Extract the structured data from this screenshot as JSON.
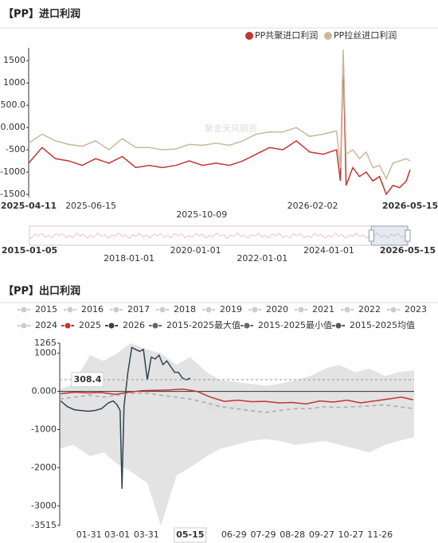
{
  "chart_data": [
    {
      "type": "line",
      "title": "【PP】进口利润",
      "watermark": "紫金天风期货",
      "xlim": [
        "2025-04-11",
        "2026-05-15"
      ],
      "xticks": [
        "2025-04-11",
        "2025-06-15",
        "2025-10-09",
        "2026-02-02",
        "2026-05-15"
      ],
      "ylim": [
        -1570,
        1790
      ],
      "yticks": [
        1500,
        1000,
        {
          "value": 500,
          "label": "500.0"
        },
        {
          "value": 0,
          "label": "0.000"
        },
        -500,
        -1000,
        -1500
      ],
      "x": [
        "2025-04-11",
        "2025-04-25",
        "2025-05-09",
        "2025-05-23",
        "2025-06-06",
        "2025-06-20",
        "2025-07-04",
        "2025-07-18",
        "2025-08-01",
        "2025-08-15",
        "2025-08-29",
        "2025-09-12",
        "2025-09-26",
        "2025-10-10",
        "2025-10-24",
        "2025-11-07",
        "2025-11-21",
        "2025-12-05",
        "2025-12-19",
        "2026-01-02",
        "2026-01-16",
        "2026-01-30",
        "2026-02-13",
        "2026-02-27",
        "2026-03-03",
        "2026-03-06",
        "2026-03-09",
        "2026-03-16",
        "2026-03-23",
        "2026-03-30",
        "2026-04-06",
        "2026-04-13",
        "2026-04-20",
        "2026-04-27",
        "2026-05-04",
        "2026-05-11",
        "2026-05-15"
      ],
      "series": [
        {
          "name": "PP共聚进口利润",
          "color": "#c23531",
          "values": [
            -800,
            -450,
            -700,
            -750,
            -850,
            -700,
            -800,
            -650,
            -900,
            -850,
            -900,
            -850,
            -750,
            -850,
            -800,
            -850,
            -750,
            -600,
            -450,
            -500,
            -300,
            -550,
            -600,
            -500,
            -1200,
            1600,
            -1300,
            -900,
            -1100,
            -1000,
            -1200,
            -1100,
            -1500,
            -1300,
            -1350,
            -1200,
            -950
          ]
        },
        {
          "name": "PP拉丝进口利润",
          "color": "#c9b99a",
          "values": [
            -350,
            -150,
            -300,
            -380,
            -420,
            -300,
            -500,
            -250,
            -450,
            -450,
            -500,
            -480,
            -380,
            -400,
            -350,
            -400,
            -300,
            -150,
            -100,
            -100,
            0,
            -200,
            -150,
            -80,
            -900,
            1750,
            -600,
            -500,
            -700,
            -550,
            -900,
            -850,
            -1150,
            -800,
            -750,
            -700,
            -750
          ]
        }
      ],
      "slider": {
        "xlim": [
          "2015-01-05",
          "2026-05-15"
        ],
        "labels": [
          "2015-01-05",
          "2018-01-01",
          "2020-01-01",
          "2022-01-01",
          "2024-01-01",
          "2026-05-15"
        ]
      }
    },
    {
      "type": "line",
      "title": "【PP】出口利润",
      "watermark": "紫金天风期货",
      "xlim": [
        "01-01",
        "12-31"
      ],
      "xticks": [
        "01-31",
        "03-01",
        "03-31",
        "06-29",
        "07-29",
        "08-28",
        "09-27",
        "10-27",
        "11-26"
      ],
      "ylim": [
        -3515,
        1265
      ],
      "yticks": [
        1265,
        1000,
        {
          "value": 0,
          "label": "0.000"
        },
        -1000,
        -2000,
        -3000,
        -3515
      ],
      "axis_pointer": {
        "x": "05-15",
        "y": 308.4
      },
      "inactive_legend": [
        "2015",
        "2016",
        "2017",
        "2018",
        "2019",
        "2020",
        "2021",
        "2022",
        "2023",
        "2024"
      ],
      "inactive_color": "#ccc",
      "series": [
        {
          "name": "2025",
          "color": "#c23531",
          "style": "line",
          "x": [
            "01-02",
            "01-16",
            "01-30",
            "02-13",
            "02-27",
            "03-13",
            "03-27",
            "04-10",
            "04-24",
            "05-08",
            "05-22",
            "06-05",
            "06-19",
            "07-03",
            "07-17",
            "07-31",
            "08-14",
            "08-28",
            "09-11",
            "09-25",
            "10-09",
            "10-23",
            "11-06",
            "11-20",
            "12-04",
            "12-18",
            "12-30"
          ],
          "values": [
            -60,
            -20,
            -40,
            -30,
            -80,
            -20,
            20,
            30,
            40,
            60,
            0,
            -150,
            -260,
            -230,
            -270,
            -260,
            -300,
            -290,
            -330,
            -250,
            -280,
            -230,
            -300,
            -250,
            -200,
            -150,
            -220
          ]
        },
        {
          "name": "2026",
          "color": "#2f4554",
          "style": "line",
          "x": [
            "01-02",
            "01-09",
            "01-16",
            "01-23",
            "01-30",
            "02-06",
            "02-13",
            "02-20",
            "02-25",
            "03-01",
            "03-04",
            "03-06",
            "03-08",
            "03-12",
            "03-16",
            "03-20",
            "03-24",
            "03-28",
            "04-01",
            "04-05",
            "04-09",
            "04-13",
            "04-17",
            "04-21",
            "04-25",
            "04-29",
            "05-03",
            "05-07",
            "05-11",
            "05-15"
          ],
          "values": [
            -250,
            -400,
            -480,
            -500,
            -520,
            -500,
            -450,
            -300,
            -250,
            -350,
            -500,
            -2550,
            -400,
            500,
            1150,
            1100,
            1050,
            1100,
            300,
            900,
            850,
            950,
            700,
            800,
            650,
            500,
            500,
            350,
            300,
            350
          ]
        },
        {
          "name": "2015-2025最大值",
          "color": "#666",
          "style": "area",
          "fill": "#e3e3e3",
          "x": [
            "01-01",
            "01-15",
            "02-01",
            "02-15",
            "03-01",
            "03-15",
            "04-01",
            "04-15",
            "05-01",
            "05-15",
            "06-01",
            "06-15",
            "07-01",
            "07-15",
            "08-01",
            "08-15",
            "09-01",
            "09-15",
            "10-01",
            "10-15",
            "11-01",
            "11-15",
            "12-01",
            "12-15",
            "12-31"
          ],
          "values": [
            50,
            200,
            950,
            800,
            1000,
            1265,
            1100,
            1000,
            700,
            900,
            500,
            300,
            250,
            200,
            150,
            200,
            300,
            400,
            600,
            700,
            500,
            600,
            400,
            500,
            550
          ]
        },
        {
          "name": "2015-2025最小值",
          "color": "#666",
          "style": "area",
          "fill": "#e3e3e3",
          "x": [
            "01-01",
            "01-15",
            "02-01",
            "02-15",
            "03-01",
            "03-15",
            "04-01",
            "04-15",
            "05-01",
            "05-15",
            "06-01",
            "06-15",
            "07-01",
            "07-15",
            "08-01",
            "08-15",
            "09-01",
            "09-15",
            "10-01",
            "10-15",
            "11-01",
            "11-15",
            "12-01",
            "12-15",
            "12-31"
          ],
          "values": [
            -1500,
            -1400,
            -1700,
            -1600,
            -1900,
            -2100,
            -2400,
            -3515,
            -2200,
            -2000,
            -1700,
            -1500,
            -1400,
            -1300,
            -1250,
            -1300,
            -1400,
            -1350,
            -1300,
            -1400,
            -1500,
            -1600,
            -1400,
            -1300,
            -1200
          ]
        },
        {
          "name": "2015-2025均值",
          "color": "#555",
          "style": "dashed",
          "line_color": "#aaa",
          "x": [
            "01-01",
            "01-15",
            "02-01",
            "02-15",
            "03-01",
            "03-15",
            "04-01",
            "04-15",
            "05-01",
            "05-15",
            "06-01",
            "06-15",
            "07-01",
            "07-15",
            "08-01",
            "08-15",
            "09-01",
            "09-15",
            "10-01",
            "10-15",
            "11-01",
            "11-15",
            "12-01",
            "12-15",
            "12-31"
          ],
          "values": [
            -200,
            -150,
            -100,
            -150,
            -100,
            -50,
            -50,
            -100,
            -150,
            -200,
            -300,
            -400,
            -450,
            -500,
            -550,
            -500,
            -450,
            -450,
            -400,
            -420,
            -400,
            -380,
            -350,
            -400,
            -450
          ]
        }
      ]
    }
  ]
}
